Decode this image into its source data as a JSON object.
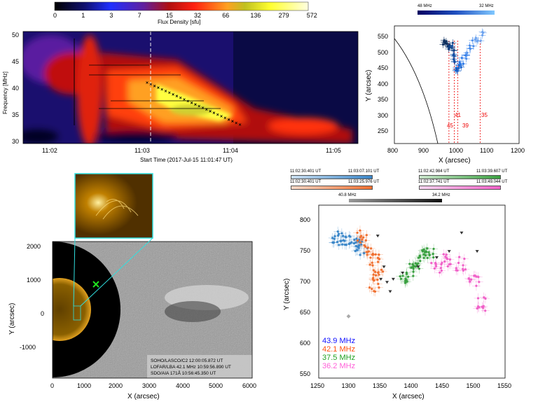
{
  "spectrogram": {
    "colorbar_ticks": [
      "0",
      "1",
      "3",
      "7",
      "15",
      "32",
      "66",
      "136",
      "279",
      "572"
    ],
    "colorbar_label": "Flux Density  [sfu]",
    "ylabel": "Frequency [MHz]",
    "yticks": [
      "30",
      "35",
      "40",
      "45",
      "50"
    ],
    "xticks": [
      "11:02",
      "11:03",
      "11:04",
      "11:05"
    ],
    "xlabel": "Start Time (2017-Jul-15 11:01:47 UT)"
  },
  "top_right": {
    "colorbar_left": "48 MHz",
    "colorbar_right": "32 MHz",
    "xlabel": "X (arcsec)",
    "ylabel": "Y (arcsec)",
    "xticks": [
      "800",
      "900",
      "1000",
      "1100",
      "1200"
    ],
    "yticks": [
      "250",
      "300",
      "350",
      "400",
      "450",
      "500",
      "550"
    ],
    "freq_markers": [
      "45",
      "41",
      "39",
      "35"
    ]
  },
  "bottom_left": {
    "xlabel": "X (arcsec)",
    "ylabel": "Y (arcsec)",
    "xticks": [
      "0",
      "1000",
      "2000",
      "3000",
      "4000",
      "5000",
      "6000"
    ],
    "yticks": [
      "2000",
      "1000",
      "0",
      "-1000"
    ],
    "info": [
      "SOHO/LASCO/C2 12:00:05.872 UT",
      "LOFAR/LBA 42.1 MHz 10:59:56.890 UT",
      "SDO/AIA 171Å 10:56:45.350 UT"
    ]
  },
  "bottom_right": {
    "time_bars": [
      {
        "start": "11:02:30.401 UT",
        "end": "11:03:07.101 UT",
        "color": "#3a86c8"
      },
      {
        "start": "11:02:42.984 UT",
        "end": "11:03:39.607 UT",
        "color": "#3aa040"
      },
      {
        "start": "11:02:30.401 UT",
        "end": "11:03:25.976 UT",
        "color": "#f07030"
      },
      {
        "start": "11:02:37.741 UT",
        "end": "11:03:49.044 UT",
        "color": "#f060c8"
      }
    ],
    "freq_bar": {
      "left": "40.8 MHz",
      "right": "34.2 MHz"
    },
    "xlabel": "X (arcsec)",
    "ylabel": "Y (arcsec)",
    "xticks": [
      "1250",
      "1300",
      "1350",
      "1400",
      "1450",
      "1500",
      "1550"
    ],
    "yticks": [
      "550",
      "600",
      "650",
      "700",
      "750",
      "800"
    ],
    "legend": [
      {
        "label": "43.9 MHz",
        "color": "#1010ff"
      },
      {
        "label": "42.1 MHz",
        "color": "#ff5010"
      },
      {
        "label": "37.5 MHz",
        "color": "#20a020"
      },
      {
        "label": "36.2 MHz",
        "color": "#ff60d8"
      }
    ]
  },
  "chart_data": [
    {
      "type": "heatmap",
      "title": "",
      "xlabel": "Start Time (2017-Jul-15 11:01:47 UT)",
      "ylabel": "Frequency [MHz]",
      "ylim": [
        30,
        50
      ],
      "colorbar": "Flux Density [sfu]",
      "colorbar_range": [
        0,
        572
      ]
    },
    {
      "type": "scatter",
      "xlabel": "X (arcsec)",
      "ylabel": "Y (arcsec)",
      "xlim": [
        800,
        1200
      ],
      "ylim": [
        240,
        560
      ],
      "x": [
        960,
        975,
        990,
        1000,
        1010,
        1030,
        1060,
        1090
      ],
      "y": [
        515,
        510,
        495,
        440,
        455,
        480,
        515,
        540
      ]
    },
    {
      "type": "scatter",
      "xlabel": "X (arcsec)",
      "ylabel": "Y (arcsec)",
      "xlim": [
        1250,
        1550
      ],
      "ylim": [
        540,
        820
      ],
      "series": [
        {
          "name": "43.9 MHz",
          "x": [
            1280,
            1290,
            1300,
            1310,
            1320
          ],
          "y": [
            770,
            765,
            760,
            755,
            750
          ]
        },
        {
          "name": "42.1 MHz",
          "x": [
            1320,
            1330,
            1340,
            1345,
            1340
          ],
          "y": [
            770,
            750,
            730,
            710,
            690
          ]
        },
        {
          "name": "37.5 MHz",
          "x": [
            1390,
            1400,
            1410,
            1420,
            1430
          ],
          "y": [
            705,
            715,
            725,
            740,
            745
          ]
        },
        {
          "name": "36.2 MHz",
          "x": [
            1440,
            1460,
            1480,
            1500,
            1510
          ],
          "y": [
            720,
            730,
            725,
            700,
            660
          ]
        }
      ]
    }
  ]
}
